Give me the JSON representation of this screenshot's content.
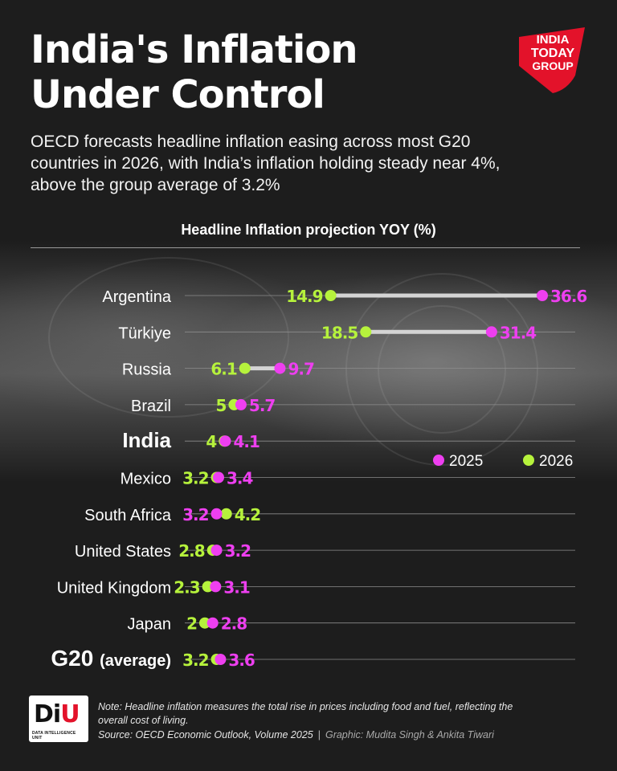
{
  "title_line1": "India's Inflation",
  "title_line2": "Under Control",
  "subtitle": "OECD forecasts headline inflation easing across most G20 countries in 2026, with India’s inflation holding steady near 4%, above the group average of 3.2%",
  "brand": {
    "line1": "INDIA",
    "line2": "TODAY",
    "line3": "GROUP",
    "color": "#e3122a"
  },
  "chart_heading": "Headline Inflation projection YOY (%)",
  "chart_data": {
    "type": "dumbbell",
    "title": "Headline Inflation projection YOY (%)",
    "series_names": [
      "2025",
      "2026"
    ],
    "colors": {
      "2025": "#ee3ff0",
      "2026": "#b6f23c"
    },
    "legend_position": "right-middle",
    "xlim": [
      0,
      37
    ],
    "rows": [
      {
        "label": "Argentina",
        "label_bold": "",
        "v2025": 36.6,
        "v2026": 14.9,
        "t2025": "36.6",
        "t2026": "14.9",
        "emphasis": "normal"
      },
      {
        "label": "Türkiye",
        "label_bold": "",
        "v2025": 31.4,
        "v2026": 18.5,
        "t2025": "31.4",
        "t2026": "18.5",
        "emphasis": "normal"
      },
      {
        "label": "Russia",
        "label_bold": "",
        "v2025": 9.7,
        "v2026": 6.1,
        "t2025": "9.7",
        "t2026": "6.1",
        "emphasis": "normal"
      },
      {
        "label": "Brazil",
        "label_bold": "",
        "v2025": 5.7,
        "v2026": 5,
        "t2025": "5.7",
        "t2026": "5",
        "emphasis": "normal"
      },
      {
        "label": "India",
        "label_bold": "",
        "v2025": 4.1,
        "v2026": 4,
        "t2025": "4.1",
        "t2026": "4",
        "emphasis": "india"
      },
      {
        "label": "Mexico",
        "label_bold": "",
        "v2025": 3.4,
        "v2026": 3.2,
        "t2025": "3.4",
        "t2026": "3.2",
        "emphasis": "normal"
      },
      {
        "label": "South Africa",
        "label_bold": "",
        "v2025": 3.2,
        "v2026": 4.2,
        "t2025": "3.2",
        "t2026": "4.2",
        "emphasis": "normal"
      },
      {
        "label": "United States",
        "label_bold": "",
        "v2025": 3.2,
        "v2026": 2.8,
        "t2025": "3.2",
        "t2026": "2.8",
        "emphasis": "normal"
      },
      {
        "label": "United Kingdom",
        "label_bold": "",
        "v2025": 3.1,
        "v2026": 2.3,
        "t2025": "3.1",
        "t2026": "2.3",
        "emphasis": "normal"
      },
      {
        "label": "Japan",
        "label_bold": "",
        "v2025": 2.8,
        "v2026": 2,
        "t2025": "2.8",
        "t2026": "2",
        "emphasis": "normal"
      },
      {
        "label": "(average)",
        "label_bold": "G20",
        "v2025": 3.6,
        "v2026": 3.2,
        "t2025": "3.6",
        "t2026": "3.2",
        "emphasis": "g20"
      }
    ]
  },
  "diu_logo": {
    "letters_d": "D",
    "letters_i": "i",
    "letters_u": "U",
    "tagline": "DATA INTELLIGENCE UNIT"
  },
  "note": "Note: Headline inflation measures the total rise in prices including food and fuel, reflecting the overall cost of living.",
  "source": "Source: OECD Economic Outlook, Volume 2025",
  "separator": "|",
  "credit": "Graphic: Mudita Singh & Ankita Tiwari"
}
